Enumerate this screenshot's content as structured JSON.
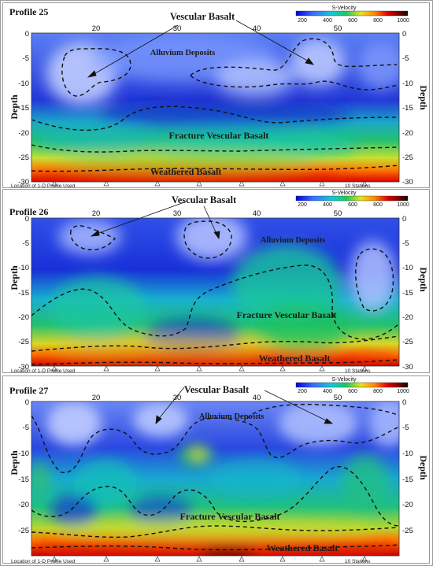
{
  "legend": {
    "title": "S-Velocity",
    "ticks": [
      "200",
      "400",
      "600",
      "800",
      "1000"
    ],
    "colors": [
      "#0000e0",
      "#3a6cff",
      "#12c8d8",
      "#1ec860",
      "#e8e020",
      "#ff8a00",
      "#e00000",
      "#7a0000",
      "#0a0a0a"
    ]
  },
  "axes": {
    "depth_label": "Depth",
    "x_ticks": [
      "20",
      "30",
      "40",
      "50"
    ],
    "depth_ticks": [
      "0",
      "-5",
      "-10",
      "-15",
      "-20",
      "-25",
      "-30"
    ]
  },
  "footer": {
    "location_note": "Location of 1-D Profile Used",
    "stations": "10 Stations"
  },
  "panels": [
    {
      "title": "Profile 25",
      "labels": {
        "vescular": "Vescular Basalt",
        "alluvium": "Alluvium Deposits",
        "fracture": "Fracture Vescular Basalt",
        "weathered": "Weathered Basalt"
      }
    },
    {
      "title": "Profile 26",
      "labels": {
        "vescular": "Vescular Basalt",
        "alluvium": "Alluvium Deposits",
        "fracture": "Fracture Vescular Basalt",
        "weathered": "Weathered Basalt"
      }
    },
    {
      "title": "Profile 27",
      "labels": {
        "vescular": "Vescular Basalt",
        "alluvium": "Alluvium Deposits",
        "fracture": "Fracture Vescular Basalt",
        "weathered": "Weathered Basalt"
      }
    }
  ]
}
